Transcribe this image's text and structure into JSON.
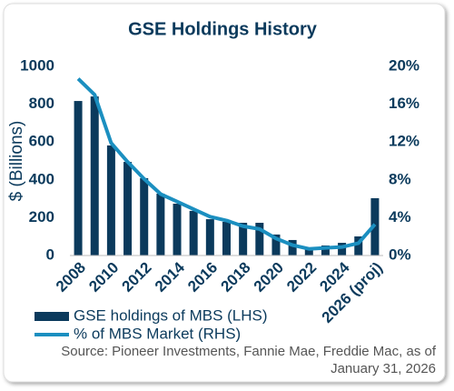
{
  "chart_data": {
    "type": "bar_line",
    "title": "GSE Holdings History",
    "y_label": "$ (Billions)",
    "categories": [
      "2008",
      null,
      "2010",
      null,
      "2012",
      null,
      "2014",
      null,
      "2016",
      null,
      "2018",
      null,
      "2020",
      null,
      "2022",
      null,
      "2024",
      null,
      "2026 (proj)"
    ],
    "series": [
      {
        "name": "GSE holdings of MBS (LHS)",
        "type": "bar",
        "color": "#0b3a5c",
        "axis": "y",
        "values": [
          817,
          841,
          582,
          495,
          409,
          327,
          274,
          236,
          192,
          178,
          173,
          173,
          111,
          82,
          43,
          53,
          67,
          101,
          303
        ]
      },
      {
        "name": "% of MBS Market (RHS)",
        "type": "line",
        "color": "#1b8fc0",
        "axis": "y2",
        "values": [
          18.7,
          17.0,
          11.9,
          9.9,
          8.1,
          6.5,
          5.7,
          4.9,
          4.1,
          3.7,
          3.1,
          2.8,
          1.8,
          1.1,
          0.7,
          0.8,
          0.9,
          1.3,
          3.3
        ]
      }
    ],
    "ylim": [
      0,
      1000
    ],
    "yticks": [
      0,
      200,
      400,
      600,
      800,
      1000
    ],
    "y2lim": [
      0,
      20
    ],
    "y2ticks": [
      {
        "value": 0,
        "label": "0%"
      },
      {
        "value": 4,
        "label": "4%"
      },
      {
        "value": 8,
        "label": "8%"
      },
      {
        "value": 12,
        "label": "12%"
      },
      {
        "value": 16,
        "label": "16%"
      },
      {
        "value": 20,
        "label": "20%"
      }
    ],
    "source": [
      "Source: Pioneer Investments, Fannie Mae, Freddie Mac, as of",
      "January 31, 2026"
    ]
  }
}
